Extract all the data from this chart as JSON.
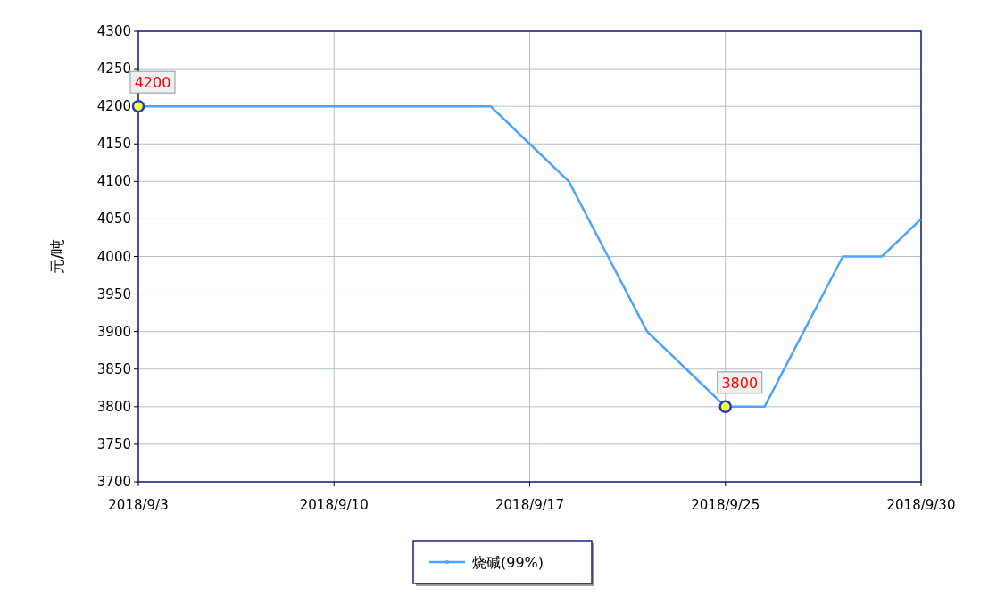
{
  "chart_data": {
    "type": "line",
    "ylabel": "元/吨",
    "categories": [
      "2018/9/3",
      null,
      null,
      null,
      null,
      "2018/9/10",
      null,
      null,
      null,
      null,
      "2018/9/17",
      null,
      null,
      null,
      null,
      "2018/9/25",
      null,
      null,
      null,
      null,
      "2018/9/30"
    ],
    "series": [
      {
        "name": "烧碱(99%)",
        "color": "#4da3ff",
        "values": [
          4200,
          4200,
          4200,
          4200,
          4200,
          4200,
          4200,
          4200,
          4200,
          4200,
          4150,
          4100,
          4000,
          3900,
          3850,
          3800,
          3800,
          3900,
          4000,
          4000,
          4050
        ],
        "value_labels": [
          "4200",
          null,
          null,
          null,
          null,
          null,
          null,
          null,
          null,
          null,
          null,
          null,
          null,
          null,
          null,
          "3800",
          null,
          null,
          null,
          null,
          null
        ]
      }
    ],
    "ylim": [
      3700,
      4300
    ],
    "yticks": [
      3700,
      3750,
      3800,
      3850,
      3900,
      3950,
      4000,
      4050,
      4100,
      4150,
      4200,
      4250,
      4300
    ],
    "grid": true,
    "legend": "bottom"
  }
}
